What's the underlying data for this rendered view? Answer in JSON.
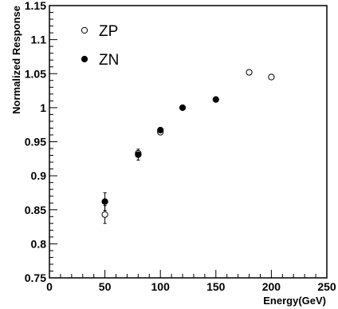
{
  "chart_data": {
    "type": "scatter",
    "title": "",
    "xlabel": "Energy(GeV)",
    "ylabel": "Normalized Response",
    "xlim": [
      0,
      250
    ],
    "ylim": [
      0.75,
      1.15
    ],
    "xticks": [
      0,
      50,
      100,
      150,
      200,
      250
    ],
    "yticks": [
      0.75,
      0.8,
      0.85,
      0.9,
      0.95,
      1.0,
      1.05,
      1.1,
      1.15
    ],
    "ytick_labels": [
      "0.75",
      "0.8",
      "0.85",
      "0.9",
      "0.95",
      "1",
      "1.05",
      "1.1",
      "1.15"
    ],
    "grid": false,
    "legend_position": "top-left",
    "series": [
      {
        "name": "ZP",
        "marker": "open-circle",
        "color": "#000000",
        "points": [
          {
            "x": 50,
            "y": 0.843,
            "yerr": 0.013
          },
          {
            "x": 80,
            "y": 0.933
          },
          {
            "x": 100,
            "y": 0.964
          },
          {
            "x": 180,
            "y": 1.052
          },
          {
            "x": 200,
            "y": 1.045
          }
        ]
      },
      {
        "name": "ZN",
        "marker": "filled-circle",
        "color": "#000000",
        "points": [
          {
            "x": 50,
            "y": 0.862,
            "yerr": 0.013
          },
          {
            "x": 80,
            "y": 0.931,
            "yerr": 0.008
          },
          {
            "x": 100,
            "y": 0.967
          },
          {
            "x": 120,
            "y": 1.0
          },
          {
            "x": 150,
            "y": 1.012
          }
        ]
      }
    ]
  }
}
